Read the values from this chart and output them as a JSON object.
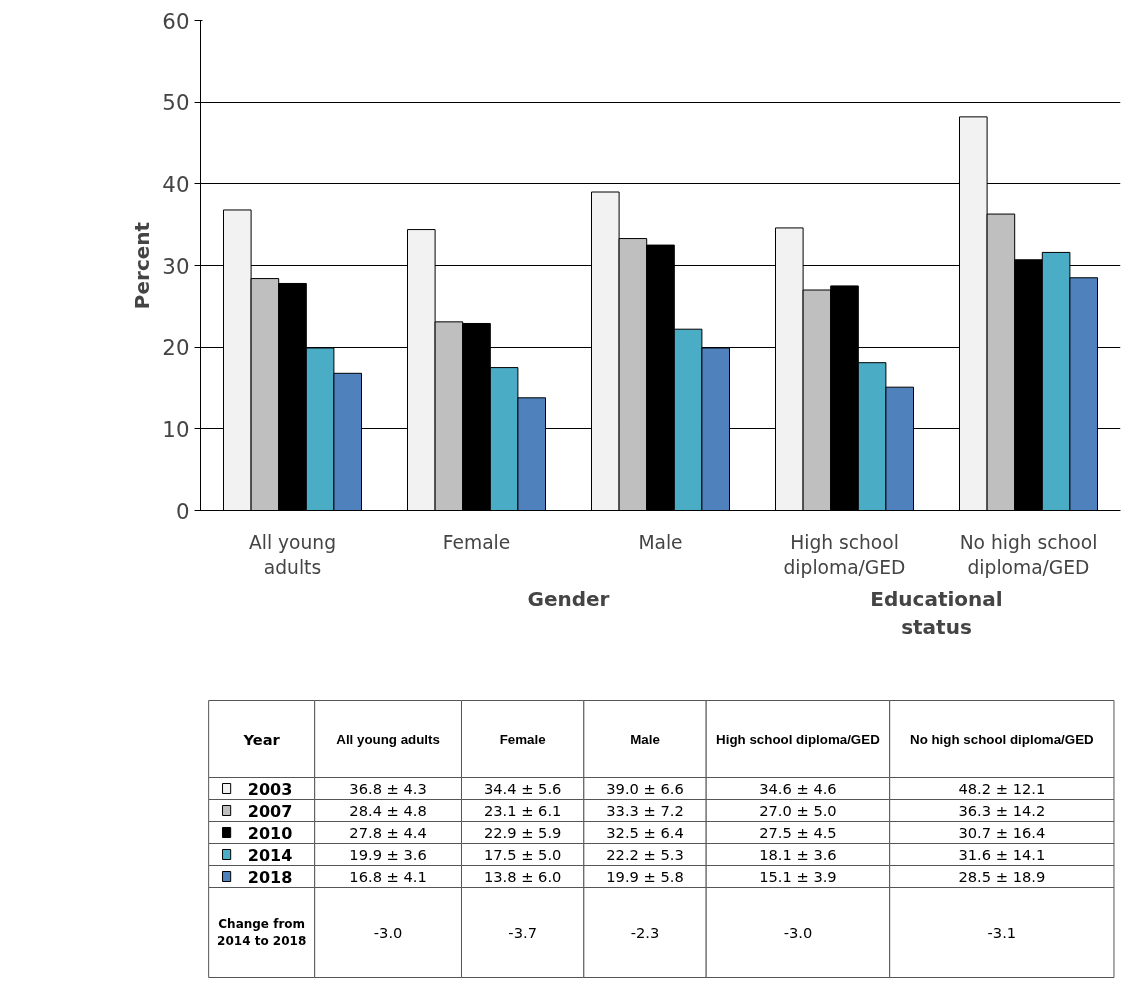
{
  "chart_data": {
    "type": "bar",
    "ylabel": "Percent",
    "categories": [
      "All young adults",
      "Female",
      "Male",
      "High school diploma/GED",
      "No high school diploma/GED"
    ],
    "series": [
      {
        "name": "2003",
        "color": "#f2f2f2",
        "values": [
          36.8,
          34.4,
          39.0,
          34.6,
          48.2
        ]
      },
      {
        "name": "2007",
        "color": "#bfbfbf",
        "values": [
          28.4,
          23.1,
          33.3,
          27.0,
          36.3
        ]
      },
      {
        "name": "2010",
        "color": "#000000",
        "values": [
          27.8,
          22.9,
          32.5,
          27.5,
          30.7
        ]
      },
      {
        "name": "2014",
        "color": "#4bacc6",
        "values": [
          19.9,
          17.5,
          22.2,
          18.1,
          31.6
        ]
      },
      {
        "name": "2018",
        "color": "#4f81bd",
        "values": [
          16.8,
          13.8,
          19.9,
          15.1,
          28.5
        ]
      }
    ],
    "ylim": [
      0,
      60
    ],
    "yticks": [
      0,
      10,
      20,
      30,
      40,
      50,
      60
    ],
    "grid": "y",
    "legend": "bottom",
    "annotations": [
      "Gender",
      "Educational status",
      "Year",
      "36.8 ± 4.3",
      "34.4 ± 5.6",
      "39.0 ± 6.6",
      "34.6 ± 4.6",
      "48.2 ± 12.1",
      "28.4 ± 4.8",
      "23.1 ± 6.1",
      "33.3 ± 7.2",
      "27.0 ± 5.0",
      "36.3 ± 14.2",
      "27.8 ± 4.4",
      "22.9 ± 5.9",
      "32.5 ± 6.4",
      "27.5 ± 4.5",
      "30.7 ± 16.4",
      "19.9 ± 3.6",
      "17.5 ± 5.0",
      "22.2 ± 5.3",
      "18.1 ± 3.6",
      "31.6 ± 14.1",
      "16.8 ± 4.1",
      "13.8 ± 6.0",
      "19.9 ± 5.8",
      "15.1 ± 3.9",
      "28.5 ± 18.9",
      "Change from 2014 to 2018",
      "-3.0",
      "-3.7",
      "-2.3",
      "-3.0",
      "-3.1"
    ]
  }
}
